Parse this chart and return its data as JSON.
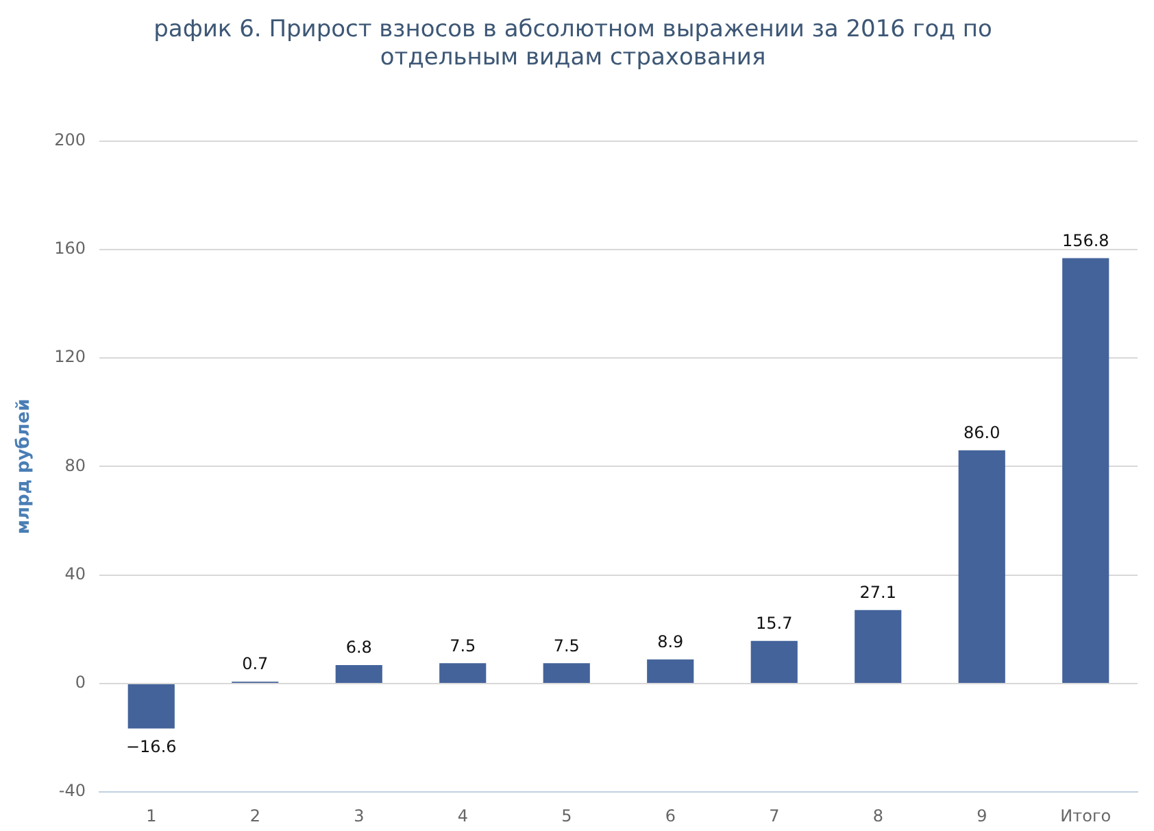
{
  "chart_data": {
    "type": "bar",
    "title": "рафик 6. Прирост взносов в абсолютном выражении за 2016 год по\nотдельным видам страхования",
    "ylabel": "млрд рублей",
    "categories": [
      "1",
      "2",
      "3",
      "4",
      "5",
      "6",
      "7",
      "8",
      "9",
      "Итого"
    ],
    "values": [
      -16.6,
      0.7,
      6.8,
      7.5,
      7.5,
      8.9,
      15.7,
      27.1,
      86.0,
      156.8
    ],
    "value_labels": [
      "−16.6",
      "0.7",
      "6.8",
      "7.5",
      "7.5",
      "8.9",
      "15.7",
      "27.1",
      "86.0",
      "156.8"
    ],
    "color": "#44639b",
    "ylim": [
      -40,
      200
    ],
    "yticks": [
      -40,
      0,
      40,
      80,
      120,
      160,
      200
    ],
    "grid": "y",
    "legend": false
  }
}
